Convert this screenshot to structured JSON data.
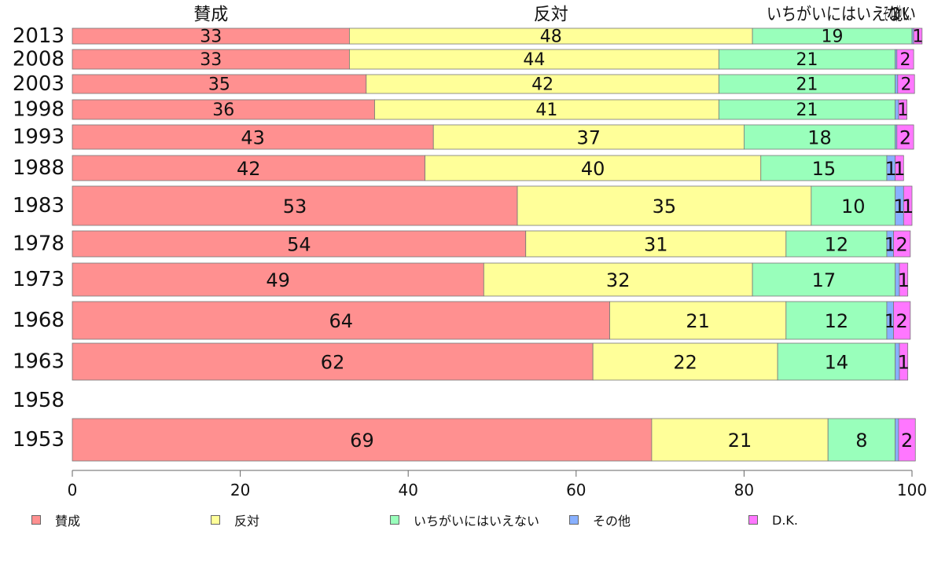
{
  "chart_data": {
    "type": "bar",
    "orientation": "horizontal-stacked-percent",
    "xlim": [
      0,
      100
    ],
    "x_ticks": [
      0,
      20,
      40,
      60,
      80,
      100
    ],
    "categories": [
      "2013",
      "2008",
      "2003",
      "1998",
      "1993",
      "1988",
      "1983",
      "1978",
      "1973",
      "1968",
      "1963",
      "1958",
      "1953"
    ],
    "series": [
      {
        "name": "賛成",
        "color": "#ff9090",
        "values": [
          33,
          33,
          35,
          36,
          43,
          42,
          53,
          54,
          49,
          64,
          62,
          null,
          69
        ],
        "labels": [
          "33",
          "33",
          "35",
          "36",
          "43",
          "42",
          "53",
          "54",
          "49",
          "64",
          "62",
          "",
          "69"
        ]
      },
      {
        "name": "反対",
        "color": "#ffff99",
        "values": [
          48,
          44,
          42,
          41,
          37,
          40,
          35,
          31,
          32,
          21,
          22,
          null,
          21
        ],
        "labels": [
          "48",
          "44",
          "42",
          "41",
          "37",
          "40",
          "35",
          "31",
          "32",
          "21",
          "22",
          "",
          "21"
        ]
      },
      {
        "name": "いちがいにはいえない",
        "color": "#99ffbb",
        "values": [
          19,
          21,
          21,
          21,
          18,
          15,
          10,
          12,
          17,
          12,
          14,
          null,
          8
        ],
        "labels": [
          "19",
          "21",
          "21",
          "21",
          "18",
          "15",
          "10",
          "12",
          "17",
          "12",
          "14",
          "",
          "8"
        ]
      },
      {
        "name": "その他",
        "color": "#88b0ff",
        "values": [
          0.2,
          0.2,
          0.3,
          0.4,
          0.2,
          1,
          1,
          0.8,
          0.5,
          0.8,
          0.5,
          null,
          0.4
        ],
        "labels": [
          "",
          "",
          "",
          "",
          "",
          "1",
          "1",
          "1",
          "",
          "1",
          "",
          "",
          ""
        ]
      },
      {
        "name": "D.K.",
        "color": "#ff77ff",
        "values": [
          1,
          2,
          2,
          1,
          2,
          1,
          1,
          2,
          1,
          2,
          1,
          null,
          2
        ],
        "labels": [
          "1",
          "2",
          "2",
          "1",
          "2",
          "1",
          "1",
          "2",
          "1",
          "2",
          "1",
          "",
          "2"
        ]
      }
    ],
    "top_labels": [
      "賛成",
      "反対",
      "いちがいにはいえない",
      "その他",
      "D.K."
    ],
    "grid": false,
    "legend_position": "bottom",
    "title": "",
    "xlabel": "",
    "ylabel": ""
  },
  "legend": [
    {
      "label": "賛成",
      "color": "#ff9090"
    },
    {
      "label": "反対",
      "color": "#ffff99"
    },
    {
      "label": "いちがいにはいえない",
      "color": "#99ffbb"
    },
    {
      "label": "その他",
      "color": "#88b0ff"
    },
    {
      "label": "D.K.",
      "color": "#ff77ff"
    }
  ]
}
